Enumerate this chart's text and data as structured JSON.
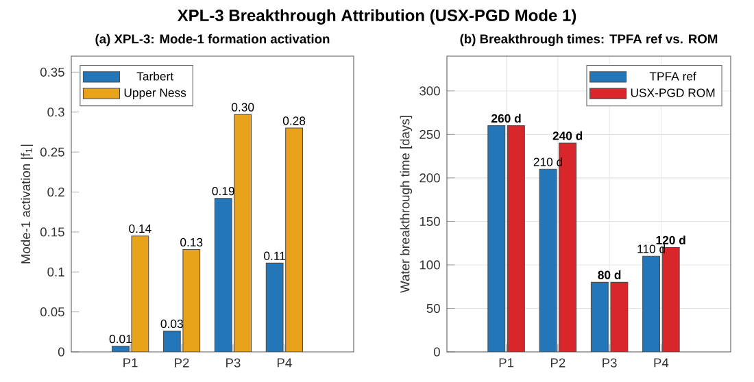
{
  "chart_data": [
    {
      "type": "bar",
      "title": "XPL-3 Breakthrough Attribution (USX-PGD Mode 1)",
      "subtitle": "(a) XPL-3: Mode-1 formation activation",
      "ylabel": "Mode-1 activation |f$_{1}$|",
      "categories": [
        "P1",
        "P2",
        "P3",
        "P4"
      ],
      "series": [
        {
          "name": "Tarbert",
          "color": "#2376b7",
          "values": [
            0.007,
            0.026,
            0.192,
            0.111
          ],
          "value_labels": [
            "0.01",
            "0.03",
            "0.19",
            "0.11"
          ]
        },
        {
          "name": "Upper Ness",
          "color": "#e9a31b",
          "values": [
            0.145,
            0.128,
            0.297,
            0.28
          ],
          "value_labels": [
            "0.14",
            "0.13",
            "0.30",
            "0.28"
          ]
        }
      ],
      "ylim": [
        0,
        0.37
      ],
      "yticks": [
        0,
        0.05,
        0.1,
        0.15,
        0.2,
        0.25,
        0.3,
        0.35
      ],
      "grid": false,
      "legend": "top left"
    },
    {
      "type": "bar",
      "subtitle": "(b) Breakthrough times: TPFA ref vs. ROM",
      "ylabel": "Water breakthrough time [days]",
      "categories": [
        "P1",
        "P2",
        "P3",
        "P4"
      ],
      "series": [
        {
          "name": "TPFA ref",
          "color": "#2376b7",
          "values": [
            260,
            210,
            80,
            110
          ],
          "value_labels": [
            null,
            "210 d",
            null,
            "110 d"
          ]
        },
        {
          "name": "USX-PGD ROM",
          "color": "#d9262b",
          "values": [
            260,
            240,
            80,
            120
          ],
          "value_labels": [
            "260 d",
            "240 d",
            "80 d",
            "120 d"
          ]
        }
      ],
      "ylim": [
        0,
        340
      ],
      "yticks": [
        0,
        50,
        100,
        150,
        200,
        250,
        300
      ],
      "grid": true,
      "legend": "top right"
    }
  ]
}
